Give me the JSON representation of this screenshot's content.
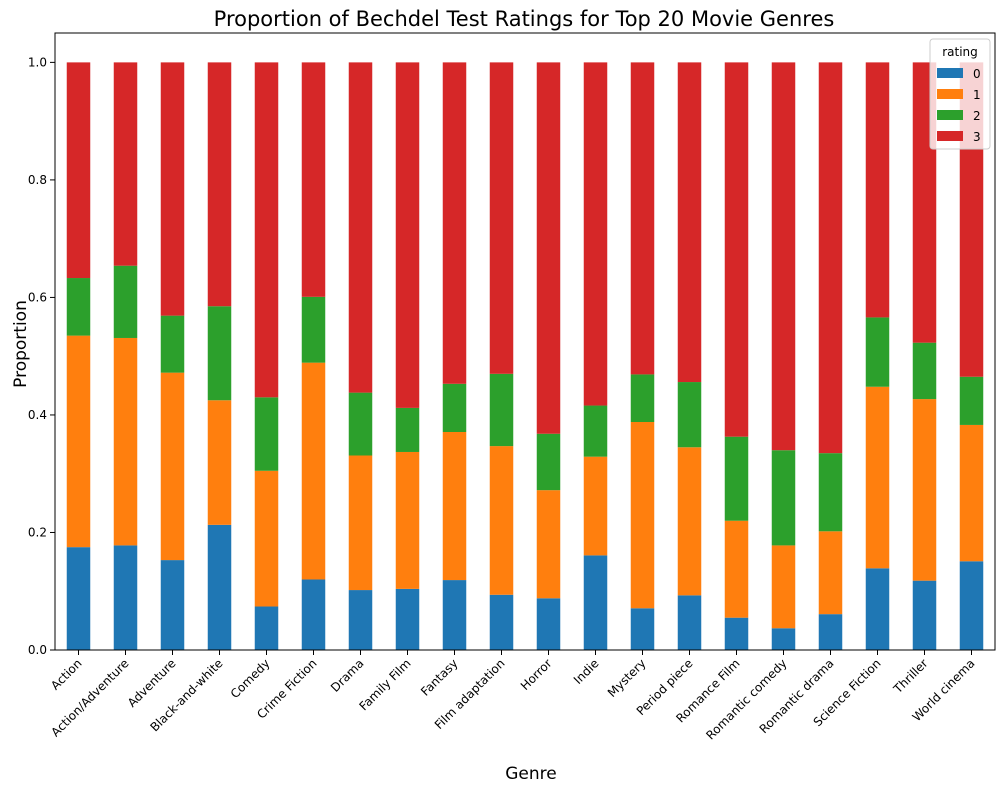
{
  "chart_data": {
    "type": "bar",
    "stacked": true,
    "title": "Proportion of Bechdel Test Ratings for Top 20 Movie Genres",
    "xlabel": "Genre",
    "ylabel": "Proportion",
    "ylim": [
      0,
      1.05
    ],
    "yticks": [
      "0.0",
      "0.2",
      "0.4",
      "0.6",
      "0.8",
      "1.0"
    ],
    "grid": false,
    "legend": {
      "title": "rating",
      "placement": "top-right"
    },
    "categories": [
      "Action",
      "Action/Adventure",
      "Adventure",
      "Black-and-white",
      "Comedy",
      "Crime Fiction",
      "Drama",
      "Family Film",
      "Fantasy",
      "Film adaptation",
      "Horror",
      "Indie",
      "Mystery",
      "Period piece",
      "Romance Film",
      "Romantic comedy",
      "Romantic drama",
      "Science Fiction",
      "Thriller",
      "World cinema"
    ],
    "series": [
      {
        "name": "0",
        "color": "#1f77b4",
        "values": [
          0.175,
          0.178,
          0.153,
          0.213,
          0.074,
          0.12,
          0.102,
          0.104,
          0.119,
          0.094,
          0.088,
          0.161,
          0.071,
          0.093,
          0.055,
          0.037,
          0.061,
          0.139,
          0.118,
          0.151
        ]
      },
      {
        "name": "1",
        "color": "#ff7f0e",
        "values": [
          0.36,
          0.353,
          0.319,
          0.212,
          0.231,
          0.369,
          0.229,
          0.233,
          0.252,
          0.253,
          0.184,
          0.168,
          0.317,
          0.252,
          0.165,
          0.141,
          0.141,
          0.309,
          0.309,
          0.232
        ]
      },
      {
        "name": "2",
        "color": "#2ca02c",
        "values": [
          0.098,
          0.123,
          0.097,
          0.16,
          0.125,
          0.112,
          0.107,
          0.075,
          0.082,
          0.123,
          0.096,
          0.087,
          0.081,
          0.111,
          0.143,
          0.162,
          0.133,
          0.118,
          0.096,
          0.082
        ]
      },
      {
        "name": "3",
        "color": "#d62728",
        "values": [
          0.367,
          0.346,
          0.431,
          0.415,
          0.57,
          0.399,
          0.562,
          0.588,
          0.547,
          0.53,
          0.632,
          0.584,
          0.531,
          0.544,
          0.637,
          0.66,
          0.665,
          0.434,
          0.477,
          0.535
        ]
      }
    ]
  }
}
